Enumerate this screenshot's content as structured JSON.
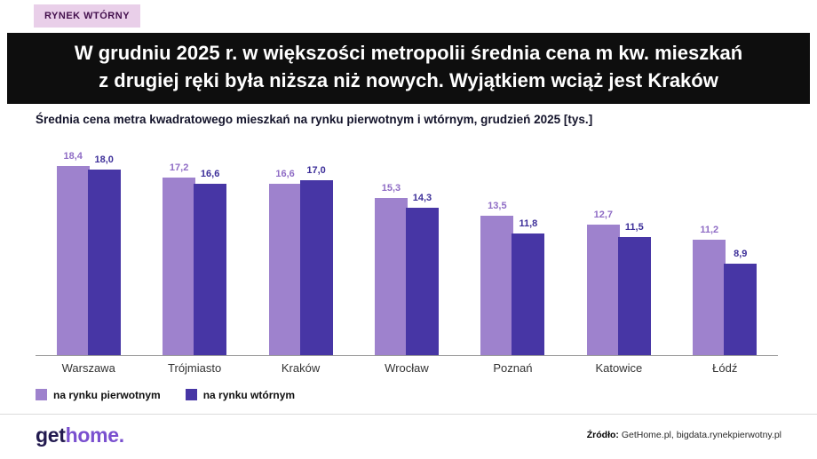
{
  "badge": {
    "label": "RYNEK WTÓRNY"
  },
  "header": {
    "line1": "W grudniu 2025 r. w większości metropolii średnia cena m kw. mieszkań",
    "line2": "z drugiej ręki była niższa niż nowych. Wyjątkiem wciąż jest Kraków"
  },
  "chart_data": {
    "type": "bar",
    "title": "Średnia cena metra kwadratowego mieszkań na rynku pierwotnym i wtórnym, grudzień 2025 [tys.]",
    "categories": [
      "Warszawa",
      "Trójmiasto",
      "Kraków",
      "Wrocław",
      "Poznań",
      "Katowice",
      "Łódź"
    ],
    "series": [
      {
        "name": "na rynku pierwotnym",
        "color": "#9e82cd",
        "label_color": "#8f6cc5",
        "values": [
          18.4,
          17.2,
          16.6,
          15.3,
          13.5,
          12.7,
          11.2
        ]
      },
      {
        "name": "na rynku wtórnym",
        "color": "#4736a5",
        "label_color": "#3d2f99",
        "values": [
          18.0,
          16.6,
          17.0,
          14.3,
          11.8,
          11.5,
          8.9
        ]
      }
    ],
    "ylim": [
      0,
      19
    ],
    "grid": false,
    "legend_position": "bottom",
    "value_label_format": "decimal-comma"
  },
  "footer": {
    "logo_get": "get",
    "logo_home": "home.",
    "source_label": "Źródło:",
    "source_text": " GetHome.pl, bigdata.rynekpierwotny.pl"
  }
}
